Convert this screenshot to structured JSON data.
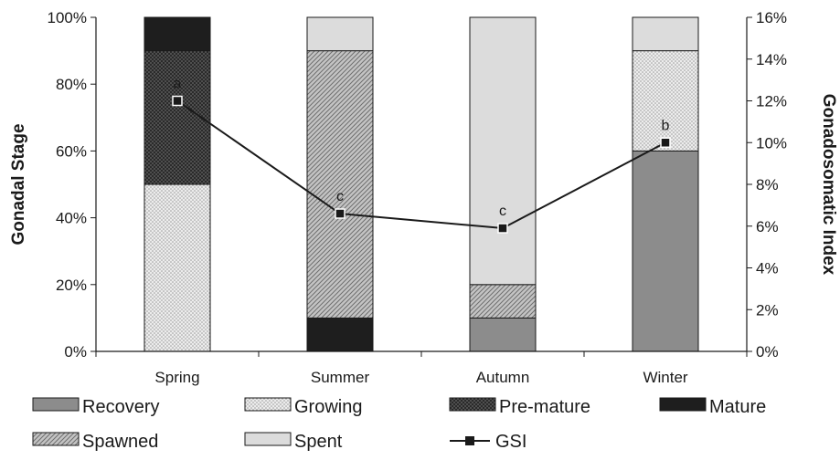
{
  "chart_data": {
    "type": "bar",
    "stacked": true,
    "percent": true,
    "categories": [
      "Spring",
      "Summer",
      "Autumn",
      "Winter"
    ],
    "series": [
      {
        "name": "Recovery",
        "color": "#8c8c8c",
        "pattern": "solid-gray",
        "values": [
          0,
          0,
          10,
          60
        ]
      },
      {
        "name": "Growing",
        "color": "#e6e6e6",
        "pattern": "dots",
        "values": [
          50,
          0,
          0,
          30
        ]
      },
      {
        "name": "Pre-mature",
        "color": "#3a3a3a",
        "pattern": "dense-dots",
        "values": [
          40,
          0,
          0,
          0
        ]
      },
      {
        "name": "Mature",
        "color": "#1e1e1e",
        "pattern": "solid-black",
        "values": [
          10,
          10,
          0,
          0
        ]
      },
      {
        "name": "Spawned",
        "color": "#b0b0b0",
        "pattern": "diagonal",
        "values": [
          0,
          80,
          10,
          0
        ]
      },
      {
        "name": "Spent",
        "color": "#dcdcdc",
        "pattern": "solid-light",
        "values": [
          0,
          10,
          80,
          10
        ]
      }
    ],
    "line_series": {
      "name": "GSI",
      "axis": "right",
      "values": [
        12.0,
        6.6,
        5.9,
        10.0
      ],
      "labels": [
        "a",
        "c",
        "c",
        "b"
      ]
    },
    "ylabel": "Gonadal  Stage",
    "y2label": "Gonadosomatic Index",
    "ylim": [
      0,
      100
    ],
    "y2lim": [
      0,
      16
    ],
    "y_ticks": [
      "0%",
      "20%",
      "40%",
      "60%",
      "80%",
      "100%"
    ],
    "y2_ticks": [
      "0%",
      "2%",
      "4%",
      "6%",
      "8%",
      "10%",
      "12%",
      "14%",
      "16%"
    ],
    "legend_position": "bottom",
    "legend_rows": [
      [
        "Recovery",
        "Growing",
        "Pre-mature",
        "Mature"
      ],
      [
        "Spawned",
        "Spent",
        "GSI"
      ]
    ],
    "grid": false
  }
}
